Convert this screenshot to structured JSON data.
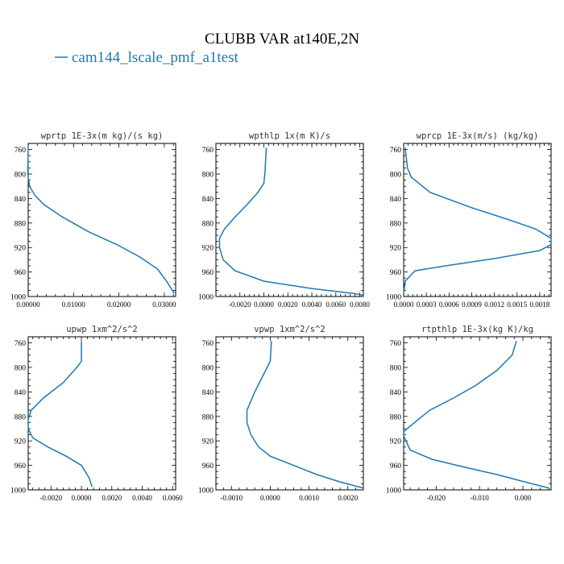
{
  "figure": {
    "title": "CLUBB VAR at140E,2N",
    "legend": "cam144_lscale_pmf_a1test",
    "line_color": "#1f77b4"
  },
  "chart_data": [
    {
      "type": "line",
      "title": "wprtp  1E-3x(m kg)/(s kg)",
      "ylim": [
        1000,
        750
      ],
      "yticks": [
        760,
        800,
        840,
        880,
        920,
        960,
        1000
      ],
      "xlim": [
        0,
        0.0325
      ],
      "xticks": [
        0,
        0.01,
        0.02,
        0.03
      ],
      "xticklabels": [
        "0.00000",
        "0.01000",
        "0.02000",
        "0.03000"
      ],
      "series": [
        {
          "points": [
            [
              0.0,
              757
            ],
            [
              -0.0001,
              800
            ],
            [
              0.0003,
              820
            ],
            [
              0.0015,
              835
            ],
            [
              0.0035,
              850
            ],
            [
              0.0075,
              870
            ],
            [
              0.0135,
              895
            ],
            [
              0.0195,
              915
            ],
            [
              0.0245,
              935
            ],
            [
              0.0285,
              955
            ],
            [
              0.0305,
              975
            ],
            [
              0.0322,
              995
            ]
          ]
        }
      ]
    },
    {
      "type": "line",
      "title": "wpthlp  1x(m K)/s",
      "ylim": [
        1000,
        750
      ],
      "yticks": [
        760,
        800,
        840,
        880,
        920,
        960,
        1000
      ],
      "xlim": [
        -0.004,
        0.0083
      ],
      "xticks": [
        -0.002,
        0,
        0.002,
        0.004,
        0.006,
        0.008
      ],
      "xticklabels": [
        "-0.0020",
        "0.0000",
        "0.0020",
        "0.0040",
        "0.0060",
        "0.0080"
      ],
      "series": [
        {
          "points": [
            [
              0.0002,
              757
            ],
            [
              0.0001,
              795
            ],
            [
              0.0,
              815
            ],
            [
              -0.0005,
              830
            ],
            [
              -0.0014,
              850
            ],
            [
              -0.0024,
              870
            ],
            [
              -0.0033,
              890
            ],
            [
              -0.0037,
              905
            ],
            [
              -0.0037,
              920
            ],
            [
              -0.0034,
              940
            ],
            [
              -0.0024,
              958
            ],
            [
              0.0,
              975
            ],
            [
              0.004,
              987
            ],
            [
              0.0075,
              995
            ],
            [
              0.0083,
              998
            ]
          ]
        }
      ]
    },
    {
      "type": "line",
      "title": "wprcp  1E-3x(m/s) (kg/kg)",
      "ylim": [
        1000,
        750
      ],
      "yticks": [
        760,
        800,
        840,
        880,
        920,
        960,
        1000
      ],
      "xlim": [
        0,
        0.00195
      ],
      "xticks": [
        0,
        0.0003,
        0.0006,
        0.0009,
        0.0012,
        0.0015,
        0.0018
      ],
      "xticklabels": [
        "0.0000",
        "0.0003",
        "0.0006",
        "0.0009",
        "0.0012",
        "0.0015",
        "0.0018"
      ],
      "series": [
        {
          "points": [
            [
              2e-05,
              757
            ],
            [
              5e-05,
              790
            ],
            [
              0.0001,
              805
            ],
            [
              0.00035,
              830
            ],
            [
              0.0009,
              855
            ],
            [
              0.0014,
              875
            ],
            [
              0.00175,
              890
            ],
            [
              0.00195,
              905
            ],
            [
              0.00195,
              915
            ],
            [
              0.0018,
              925
            ],
            [
              0.0012,
              938
            ],
            [
              0.00055,
              950
            ],
            [
              0.00015,
              958
            ],
            [
              2e-05,
              975
            ],
            [
              0.0,
              995
            ]
          ]
        }
      ]
    },
    {
      "type": "line",
      "title": "upwp  1xm^2/s^2",
      "ylim": [
        1000,
        750
      ],
      "yticks": [
        760,
        800,
        840,
        880,
        920,
        960,
        1000
      ],
      "xlim": [
        -0.0035,
        0.0062
      ],
      "xticks": [
        -0.002,
        0,
        0.002,
        0.004,
        0.006
      ],
      "xticklabels": [
        "-0.0020",
        "0.0000",
        "0.0020",
        "0.0040",
        "0.0060"
      ],
      "series": [
        {
          "points": [
            [
              0.0,
              757
            ],
            [
              0.0,
              790
            ],
            [
              -0.0003,
              800
            ],
            [
              -0.0012,
              825
            ],
            [
              -0.0025,
              850
            ],
            [
              -0.0033,
              870
            ],
            [
              -0.0035,
              885
            ],
            [
              -0.0035,
              900
            ],
            [
              -0.0032,
              915
            ],
            [
              -0.0022,
              930
            ],
            [
              -0.001,
              945
            ],
            [
              0.0,
              960
            ],
            [
              0.0005,
              980
            ],
            [
              0.0007,
              995
            ]
          ]
        }
      ]
    },
    {
      "type": "line",
      "title": "vpwp  1xm^2/s^2",
      "ylim": [
        1000,
        750
      ],
      "yticks": [
        760,
        800,
        840,
        880,
        920,
        960,
        1000
      ],
      "xlim": [
        -0.0014,
        0.0024
      ],
      "xticks": [
        -0.001,
        0,
        0.001,
        0.002
      ],
      "xticklabels": [
        "-0.0010",
        "0.0000",
        "0.0010",
        "0.0020"
      ],
      "series": [
        {
          "points": [
            [
              3e-05,
              757
            ],
            [
              0.0,
              790
            ],
            [
              -0.0002,
              815
            ],
            [
              -0.0004,
              840
            ],
            [
              -0.0006,
              870
            ],
            [
              -0.0006,
              890
            ],
            [
              -0.0005,
              910
            ],
            [
              -0.0003,
              930
            ],
            [
              0.0,
              945
            ],
            [
              0.0006,
              960
            ],
            [
              0.0012,
              975
            ],
            [
              0.0018,
              987
            ],
            [
              0.0024,
              997
            ]
          ]
        }
      ]
    },
    {
      "type": "line",
      "title": "rtpthlp  1E-3x(kg K)/kg",
      "ylim": [
        1000,
        750
      ],
      "yticks": [
        760,
        800,
        840,
        880,
        920,
        960,
        1000
      ],
      "xlim": [
        -0.0275,
        0.0065
      ],
      "xticks": [
        -0.02,
        -0.01,
        0
      ],
      "xticklabels": [
        "-0.020",
        "-0.010",
        "0.000"
      ],
      "series": [
        {
          "points": [
            [
              -0.0015,
              757
            ],
            [
              -0.0025,
              780
            ],
            [
              -0.006,
              805
            ],
            [
              -0.011,
              830
            ],
            [
              -0.016,
              850
            ],
            [
              -0.0215,
              870
            ],
            [
              -0.025,
              890
            ],
            [
              -0.0275,
              905
            ],
            [
              -0.0275,
              912
            ],
            [
              -0.026,
              935
            ],
            [
              -0.021,
              950
            ],
            [
              -0.014,
              962
            ],
            [
              -0.006,
              975
            ],
            [
              0.001,
              988
            ],
            [
              0.006,
              997
            ]
          ]
        }
      ]
    }
  ]
}
